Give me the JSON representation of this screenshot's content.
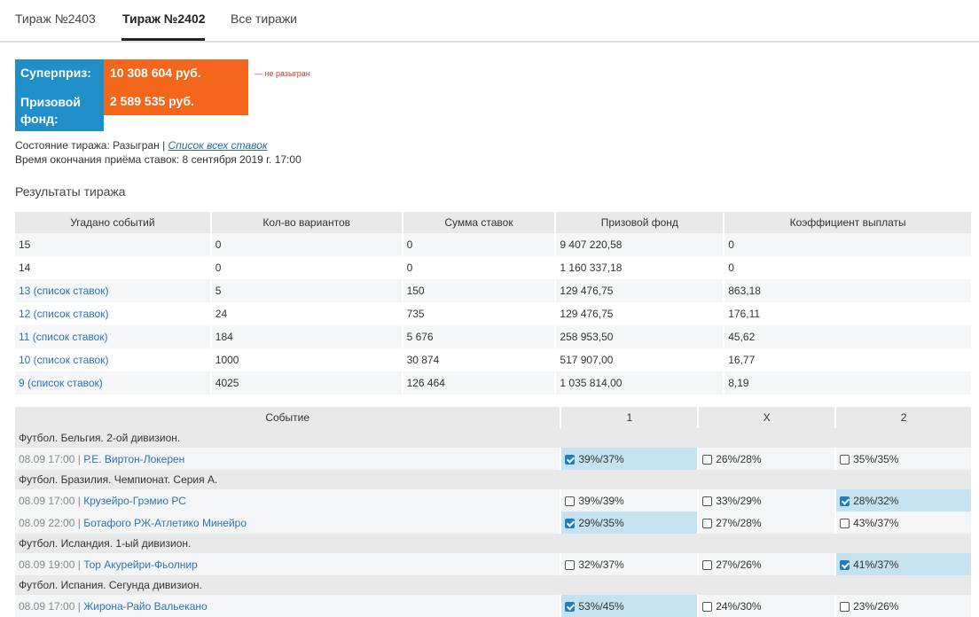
{
  "tabs": [
    "Тираж №2403",
    "Тираж №2402",
    "Все тиражи"
  ],
  "prize": {
    "super_label": "Суперприз:",
    "super_value": "10 308 604 руб.",
    "super_note": "— не разыгран",
    "fund_label_1": "Призовой",
    "fund_label_2": "фонд:",
    "fund_value": "2 589 535 руб."
  },
  "status": {
    "label": "Состояние тиража: Разыгран |",
    "link": "Список всех ставок",
    "end_time": "Время окончания приёма ставок: 8 сентября 2019 г. 17:00"
  },
  "results_title": "Результаты тиража",
  "results": {
    "headers": [
      "Угадано событий",
      "Кол-во вариантов",
      "Сумма ставок",
      "Призовой фонд",
      "Коэффициент выплаты"
    ],
    "rows": [
      [
        "15",
        "0",
        "0",
        "9 407 220,58",
        "0"
      ],
      [
        "14",
        "0",
        "0",
        "1 160 337,18",
        "0"
      ],
      [
        "13 (список ставок)",
        "5",
        "150",
        "129 476,75",
        "863,18"
      ],
      [
        "12 (список ставок)",
        "24",
        "735",
        "129 476,75",
        "176,11"
      ],
      [
        "11 (список ставок)",
        "184",
        "5 676",
        "258 953,50",
        "45,62"
      ],
      [
        "10 (список ставок)",
        "1000",
        "30 874",
        "517 907,00",
        "16,77"
      ],
      [
        "9 (список ставок)",
        "4025",
        "126 464",
        "1 035 814,00",
        "8,19"
      ]
    ]
  },
  "events": {
    "headers": [
      "Событие",
      "1",
      "X",
      "2"
    ],
    "leagues": [
      "Футбол. Бельгия. 2-ой дивизион.",
      "Футбол. Бразилия. Чемпионат. Серия А.",
      "Футбол. Исландия. 1-ый дивизион.",
      "Футбол. Испания. Сегунда дивизион."
    ],
    "matches": [
      {
        "date": "08.09 17:00 |",
        "name": "Р.Е. Виртон-Локерен",
        "p1": "39%/37%",
        "px": "26%/28%",
        "p2": "35%/35%"
      },
      {
        "date": "08.09 17:00 |",
        "name": "Крузейро-Грэмио РС",
        "p1": "39%/39%",
        "px": "33%/29%",
        "p2": "28%/32%"
      },
      {
        "date": "08.09 22:00 |",
        "name": "Ботафого РЖ-Атлетико Минейро",
        "p1": "29%/35%",
        "px": "27%/28%",
        "p2": "43%/37%"
      },
      {
        "date": "08.09 19:00 |",
        "name": "Тор Акурейри-Фьолнир",
        "p1": "32%/37%",
        "px": "27%/26%",
        "p2": "41%/37%"
      },
      {
        "date": "08.09 17:00 |",
        "name": "Жирона-Райо Вальекано",
        "p1": "53%/45%",
        "px": "24%/30%",
        "p2": "23%/26%"
      }
    ]
  }
}
